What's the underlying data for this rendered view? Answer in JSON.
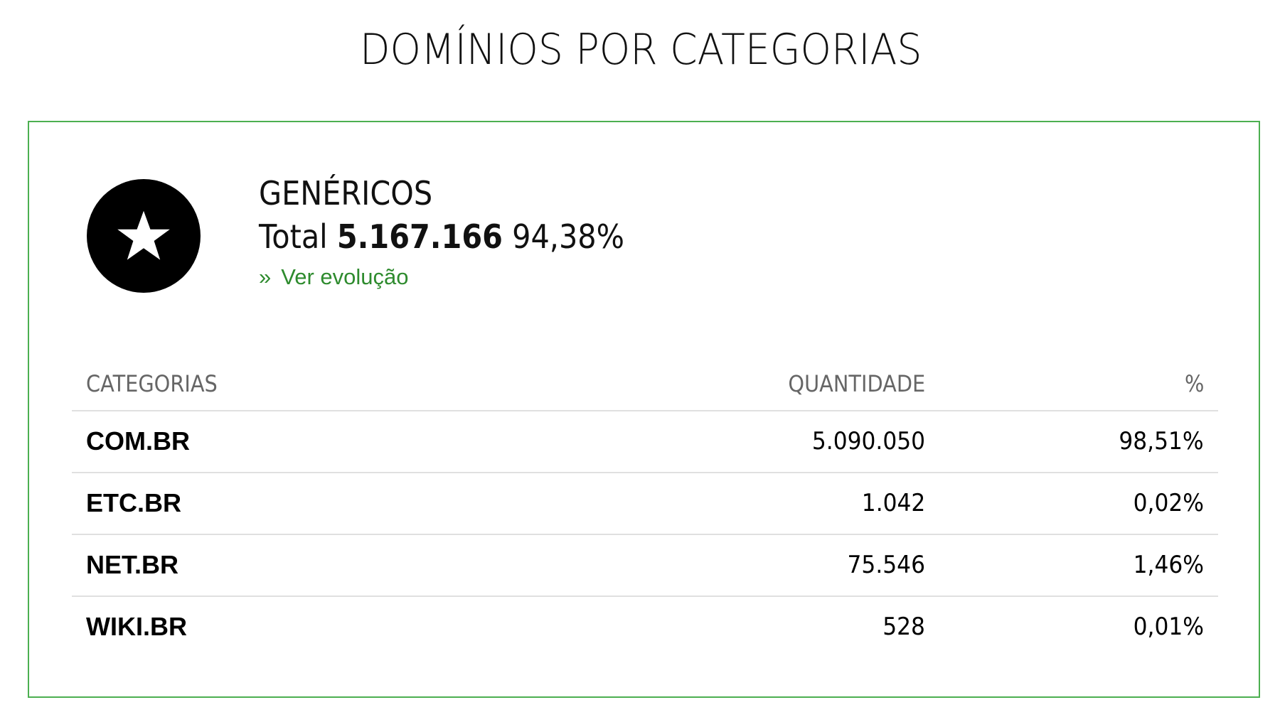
{
  "page": {
    "title": "DOMÍNIOS POR CATEGORIAS"
  },
  "card": {
    "icon": "star-icon",
    "accent_color": "#4caf50",
    "category_name": "GENÉRICOS",
    "total_label": "Total",
    "total_value": "5.167.166",
    "total_percent": "94,38%",
    "link_chevron": "»",
    "link_label": "Ver evolução",
    "link_color": "#2e8b2e"
  },
  "table": {
    "headers": {
      "category": "CATEGORIAS",
      "quantity": "QUANTIDADE",
      "percent": "%"
    },
    "rows": [
      {
        "category": "COM.BR",
        "quantity": "5.090.050",
        "percent": "98,51%"
      },
      {
        "category": "ETC.BR",
        "quantity": "1.042",
        "percent": "0,02%"
      },
      {
        "category": "NET.BR",
        "quantity": "75.546",
        "percent": "1,46%"
      },
      {
        "category": "WIKI.BR",
        "quantity": "528",
        "percent": "0,01%"
      }
    ]
  }
}
